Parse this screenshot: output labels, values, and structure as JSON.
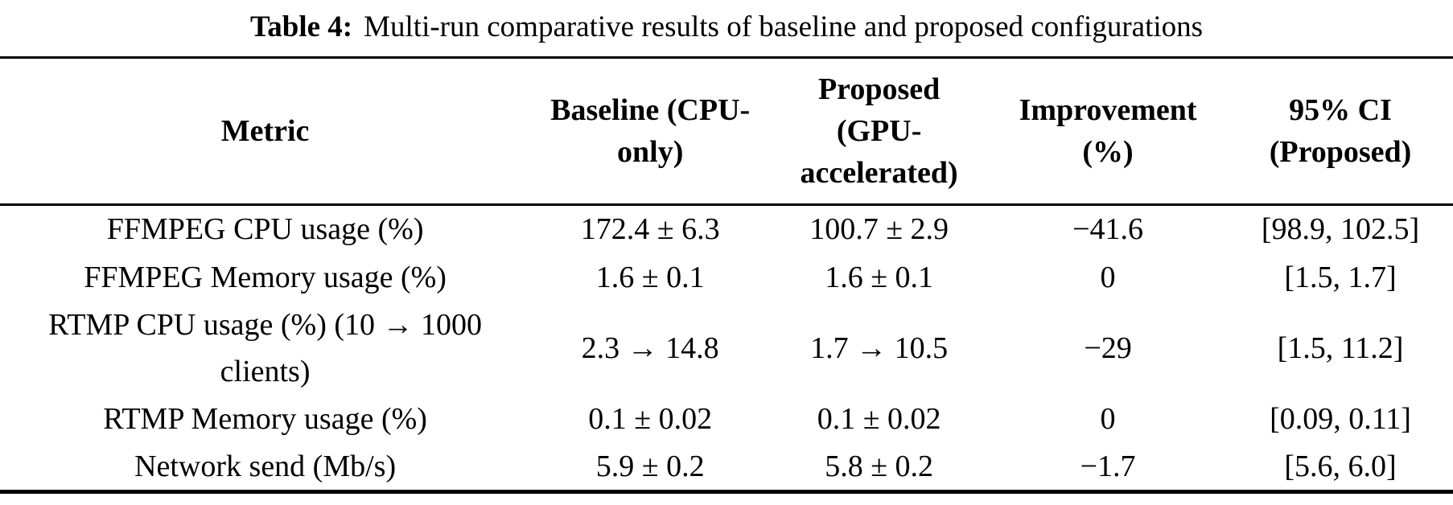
{
  "page": {
    "background_color": "#ffffff",
    "text_color": "#000000",
    "rule_color": "#000000"
  },
  "caption": {
    "label": "Table 4:",
    "text": "Multi-run comparative results of baseline and proposed configurations"
  },
  "table": {
    "columns": [
      "Metric",
      "Baseline (CPU-only)",
      "Proposed (GPU-accelerated)",
      "Improvement (%)",
      "95% CI (Proposed)"
    ],
    "rows": [
      [
        "FFMPEG CPU usage (%)",
        "172.4 ± 6.3",
        "100.7 ± 2.9",
        "−41.6",
        "[98.9, 102.5]"
      ],
      [
        "FFMPEG Memory usage (%)",
        "1.6 ± 0.1",
        "1.6 ± 0.1",
        "0",
        "[1.5, 1.7]"
      ],
      [
        "RTMP CPU usage (%) (10 → 1000 clients)",
        "2.3 → 14.8",
        "1.7 → 10.5",
        "−29",
        "[1.5, 11.2]"
      ],
      [
        "RTMP Memory usage (%)",
        "0.1 ± 0.02",
        "0.1 ± 0.02",
        "0",
        "[0.09, 0.11]"
      ],
      [
        "Network send (Mb/s)",
        "5.9 ± 0.2",
        "5.8 ± 0.2",
        "−1.7",
        "[5.6, 6.0]"
      ]
    ]
  }
}
